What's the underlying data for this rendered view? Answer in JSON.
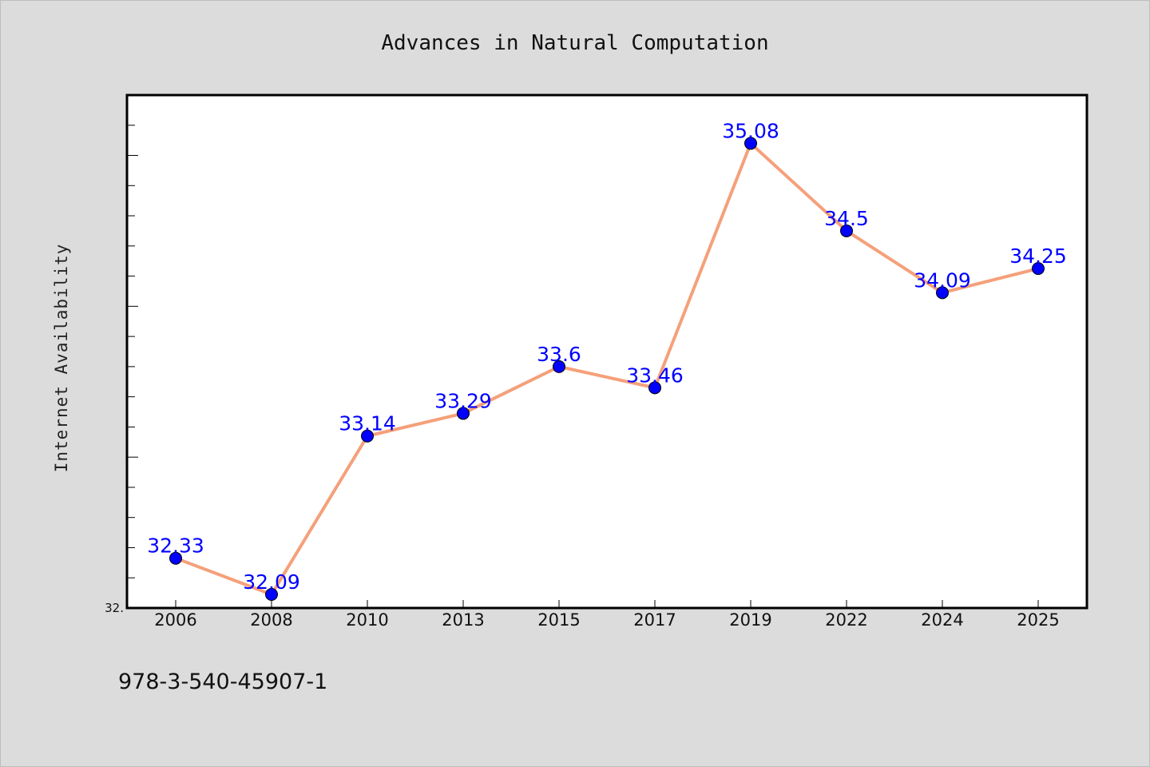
{
  "colors": {
    "background": "#dcdcdc",
    "plot_background": "#ffffff",
    "line": "#f5a07a",
    "marker": "#0000ff",
    "label": "#0000ff"
  },
  "footer_text": "978-3-540-45907-1",
  "chart_data": {
    "type": "line",
    "title": "Advances in Natural Computation",
    "xlabel": "",
    "ylabel": "Internet Availability",
    "categories": [
      "2006",
      "2008",
      "2010",
      "2013",
      "2015",
      "2017",
      "2019",
      "2022",
      "2024",
      "2025"
    ],
    "values": [
      32.33,
      32.09,
      33.14,
      33.29,
      33.6,
      33.46,
      35.08,
      34.5,
      34.09,
      34.25
    ],
    "data_labels": [
      "32.33",
      "32.09",
      "33.14",
      "33.29",
      "33.6",
      "33.46",
      "35.08",
      "34.5",
      "34.09",
      "34.25"
    ],
    "ylim": [
      32.0,
      35.4
    ],
    "ytick_labels": [
      "32."
    ],
    "grid": false,
    "legend": "none"
  }
}
